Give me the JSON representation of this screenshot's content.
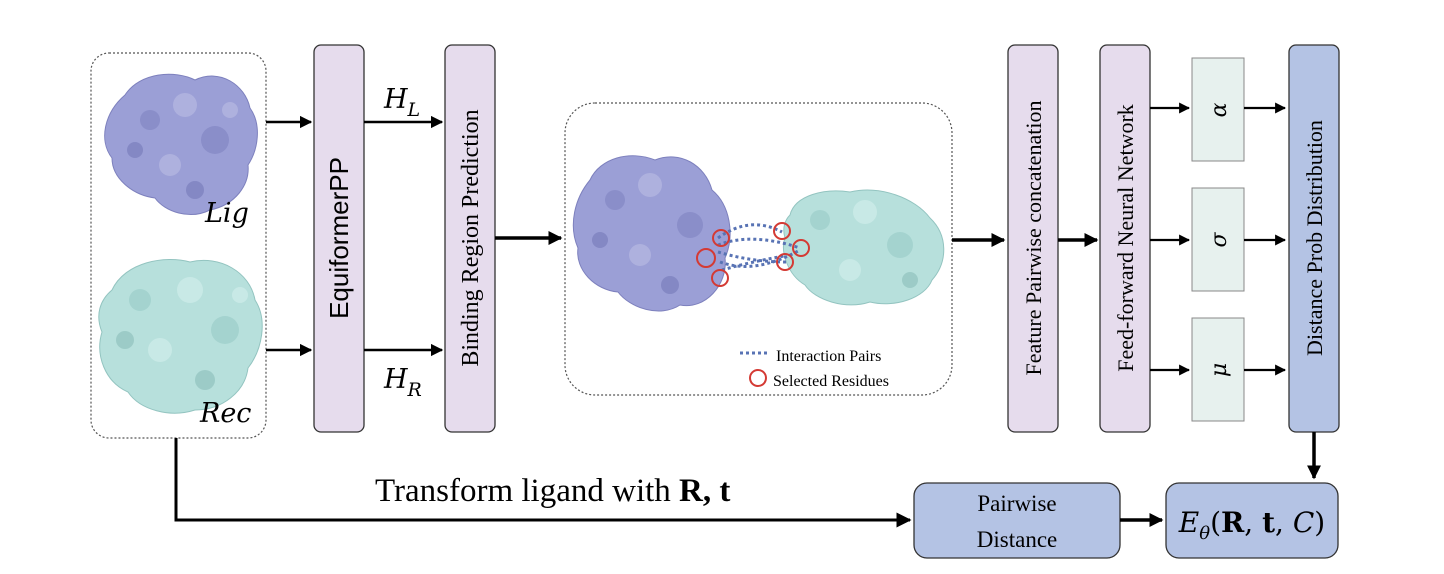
{
  "input": {
    "ligand_label": "Lig",
    "receptor_label": "Rec"
  },
  "blocks": {
    "equiformer": "EquiformerPP",
    "binding": "Binding Region Prediction",
    "concat": "Feature Pairwise concatenation",
    "ffn": "Feed-forward Neural Network",
    "distribution": "Distance Prob Distribution",
    "pairwise_line1": "Pairwise",
    "pairwise_line2": "Distance"
  },
  "features": {
    "h_l": "H",
    "h_l_sub": "L",
    "h_r": "H",
    "h_r_sub": "R"
  },
  "params": {
    "alpha": "α",
    "sigma": "σ",
    "mu": "μ"
  },
  "legend": {
    "interaction": "Interaction Pairs",
    "selected": "Selected Residues"
  },
  "transform": {
    "prefix": "Transform ligand with ",
    "bold": "R, t"
  },
  "energy": {
    "E": "E",
    "sub": "θ",
    "open": "(",
    "R": "R",
    "comma1": ", ",
    "t": "t",
    "comma2": ", ",
    "C": "C",
    "close": ")"
  },
  "colors": {
    "ligand": "#9b9fd6",
    "receptor": "#b7e0dc",
    "block_purple": "#e6dced",
    "block_blue": "#b4c3e4",
    "param_box": "#e7f1ee",
    "interaction_line": "#5873b4",
    "residue_circle": "#d43a34"
  }
}
